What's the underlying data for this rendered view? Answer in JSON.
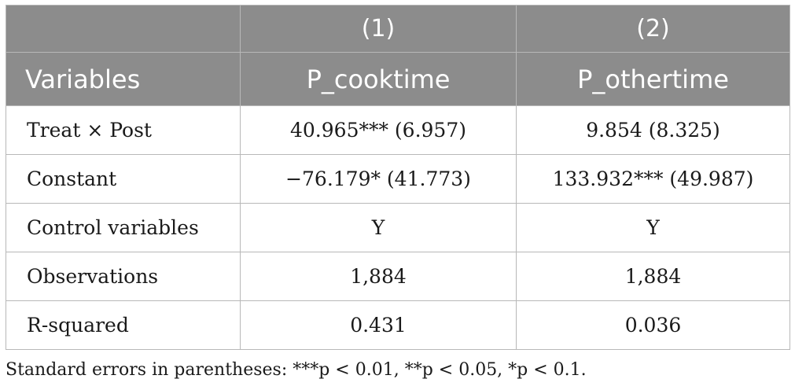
{
  "header": {
    "row1": [
      "",
      "(1)",
      "(2)"
    ],
    "row2": [
      "Variables",
      "P_cooktime",
      "P_othertime"
    ]
  },
  "rows": [
    {
      "label": "Treat × Post",
      "c1": "40.965*** (6.957)",
      "c2": "9.854 (8.325)"
    },
    {
      "label": "Constant",
      "c1": "−76.179* (41.773)",
      "c2": "133.932*** (49.987)"
    },
    {
      "label": "Control variables",
      "c1": "Y",
      "c2": "Y"
    },
    {
      "label": "Observations",
      "c1": "1,884",
      "c2": "1,884"
    },
    {
      "label": "R-squared",
      "c1": "0.431",
      "c2": "0.036"
    }
  ],
  "note": "Standard errors in parentheses: ***p < 0.01, **p < 0.05, *p < 0.1.",
  "colors": {
    "header_bg": "#8c8c8c",
    "header_text": "#ffffff",
    "grid": "#b8b8b8"
  }
}
